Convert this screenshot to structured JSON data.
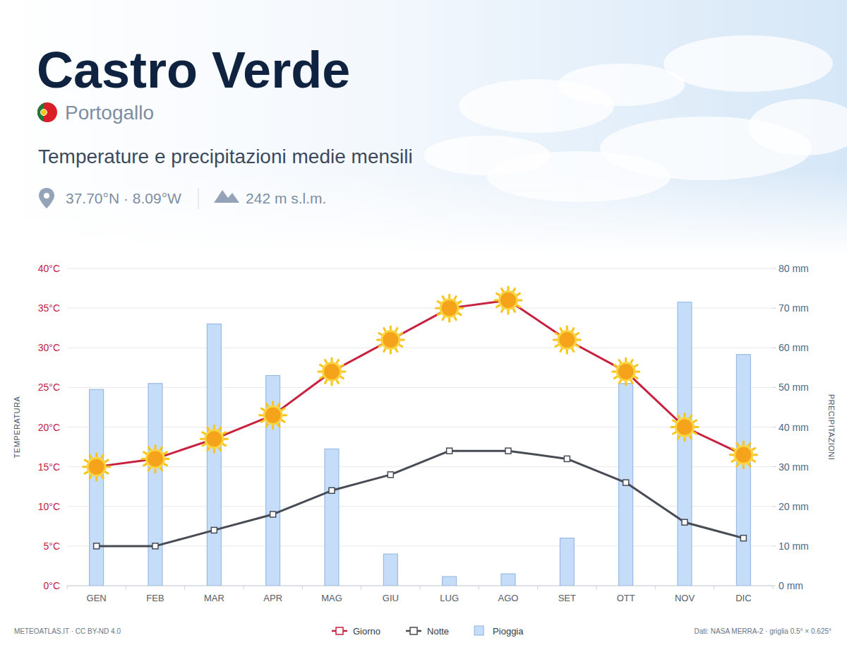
{
  "chart_data": {
    "type": "line",
    "title": "Castro Verde",
    "subtitle": "Temperature e precipitazioni medie mensili",
    "annotations": [
      "Portogallo",
      "37.70°N · 8.09°W",
      "242 m s.l.m.",
      "METEOATLAS.IT · CC BY-ND 4.0",
      "Dati: NASA MERRA-2 · griglia 0.5° × 0.625°"
    ],
    "y_label": "TEMPERATURA",
    "y2_label": "PRECIPITAZIONI",
    "categories": [
      "GEN",
      "FEB",
      "MAR",
      "APR",
      "MAG",
      "GIU",
      "LUG",
      "AGO",
      "SET",
      "OTT",
      "NOV",
      "DIC"
    ],
    "series": [
      {
        "name": "Giorno",
        "type": "line",
        "color": "#c8203f",
        "marker": "sun",
        "values": [
          15,
          16,
          18.5,
          21.5,
          27,
          31,
          35,
          36,
          31,
          27,
          20,
          16.5
        ]
      },
      {
        "name": "Notte",
        "type": "line",
        "color": "#474b53",
        "marker": "square",
        "values": [
          5,
          5,
          7,
          9,
          12,
          14,
          17,
          17,
          16,
          13,
          8,
          6
        ]
      },
      {
        "name": "Pioggia",
        "type": "bar",
        "color": "#c6ddfa",
        "axis": "y2",
        "values": [
          49.5,
          51,
          66,
          53,
          34.5,
          8,
          2.3,
          3,
          12,
          51,
          71.5,
          58.3
        ]
      }
    ],
    "ylim": [
      0,
      40
    ],
    "yticks": [
      {
        "value": 0,
        "label": "0°C"
      },
      {
        "value": 5,
        "label": "5°C"
      },
      {
        "value": 10,
        "label": "10°C"
      },
      {
        "value": 15,
        "label": "15°C"
      },
      {
        "value": 20,
        "label": "20°C"
      },
      {
        "value": 25,
        "label": "25°C"
      },
      {
        "value": 30,
        "label": "30°C"
      },
      {
        "value": 35,
        "label": "35°C"
      },
      {
        "value": 40,
        "label": "40°C"
      }
    ],
    "y2lim": [
      0,
      80
    ],
    "y2ticks": [
      {
        "value": 0,
        "label": "0 mm"
      },
      {
        "value": 10,
        "label": "10 mm"
      },
      {
        "value": 20,
        "label": "20 mm"
      },
      {
        "value": 30,
        "label": "30 mm"
      },
      {
        "value": 40,
        "label": "40 mm"
      },
      {
        "value": 50,
        "label": "50 mm"
      },
      {
        "value": 60,
        "label": "60 mm"
      },
      {
        "value": 70,
        "label": "70 mm"
      },
      {
        "value": 80,
        "label": "80 mm"
      }
    ],
    "grid": true,
    "legend": "bottom"
  }
}
